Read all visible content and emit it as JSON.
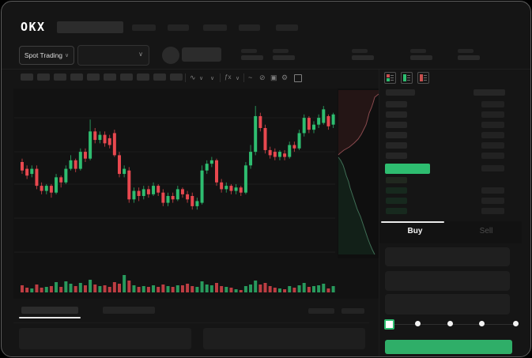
{
  "window": {
    "logo_text": "OKX"
  },
  "colors": {
    "up": "#2ebd70",
    "down": "#e8484f",
    "accent_button": "#2fae68",
    "price_highlight": "#2ebd70",
    "tab_active_underline": "#ececec"
  },
  "header": {
    "market_button": {
      "label": "Spot Trading",
      "chevron": "∨"
    },
    "pair_dropdown": {
      "chevron": "∨"
    },
    "nav_skeleton_count": 5,
    "stat_skeleton_count": 5
  },
  "chart_toolbar": {
    "chip_count": 10,
    "icon_glyphs": [
      "∿",
      "∨",
      "∨",
      "ƒx",
      "∨",
      "~",
      "⊘",
      "▣",
      "⚙"
    ]
  },
  "orderbook": {
    "view_icons": [
      "combined-book-icon",
      "bids-only-icon",
      "asks-only-icon"
    ],
    "ask_row_count": 6,
    "bid_row_count": 4
  },
  "trade_panel": {
    "tabs": [
      {
        "label": "Buy",
        "active": true
      },
      {
        "label": "Sell",
        "active": false
      }
    ],
    "input_count": 3,
    "slider": {
      "stop_count": 5,
      "selected_index": 0
    }
  },
  "chart_data": {
    "type": "candlestick",
    "title": "",
    "xlabel": "",
    "ylabel": "",
    "ylim": [
      0,
      100
    ],
    "grid": true,
    "gridline_values": [
      7,
      27,
      47,
      66,
      86
    ],
    "note": "Skeleton trading UI; no axis labels visible. Prices normalized 0-100.",
    "candles_ohlc": [
      [
        60,
        62,
        53,
        55
      ],
      [
        56,
        58,
        50,
        52
      ],
      [
        53,
        58,
        51,
        56
      ],
      [
        56,
        58,
        44,
        46
      ],
      [
        46,
        48,
        41,
        43
      ],
      [
        43,
        47,
        41,
        46
      ],
      [
        46,
        47,
        39,
        42
      ],
      [
        42,
        53,
        41,
        51
      ],
      [
        51,
        52,
        45,
        48
      ],
      [
        48,
        58,
        47,
        56
      ],
      [
        56,
        64,
        55,
        61
      ],
      [
        61,
        62,
        54,
        56
      ],
      [
        56,
        68,
        55,
        66
      ],
      [
        66,
        68,
        60,
        62
      ],
      [
        62,
        85,
        61,
        78
      ],
      [
        78,
        80,
        71,
        73
      ],
      [
        73,
        78,
        71,
        76
      ],
      [
        76,
        78,
        69,
        71
      ],
      [
        74,
        76,
        68,
        70
      ],
      [
        77,
        79,
        63,
        64
      ],
      [
        64,
        66,
        51,
        53
      ],
      [
        53,
        58,
        51,
        56
      ],
      [
        55,
        57,
        36,
        38
      ],
      [
        38,
        45,
        36,
        43
      ],
      [
        43,
        45,
        37,
        40
      ],
      [
        40,
        46,
        38,
        44
      ],
      [
        44,
        46,
        39,
        41
      ],
      [
        41,
        48,
        40,
        46
      ],
      [
        46,
        47,
        40,
        42
      ],
      [
        42,
        44,
        34,
        36
      ],
      [
        36,
        42,
        34,
        40
      ],
      [
        40,
        42,
        36,
        38
      ],
      [
        38,
        46,
        37,
        44
      ],
      [
        44,
        45,
        39,
        41
      ],
      [
        41,
        43,
        36,
        38
      ],
      [
        40,
        42,
        32,
        34
      ],
      [
        34,
        39,
        32,
        37
      ],
      [
        36,
        58,
        35,
        55
      ],
      [
        55,
        61,
        53,
        59
      ],
      [
        59,
        63,
        57,
        61
      ],
      [
        61,
        62,
        46,
        48
      ],
      [
        48,
        50,
        42,
        44
      ],
      [
        44,
        48,
        42,
        46
      ],
      [
        46,
        47,
        41,
        43
      ],
      [
        43,
        47,
        41,
        45
      ],
      [
        45,
        46,
        40,
        42
      ],
      [
        42,
        60,
        41,
        58
      ],
      [
        58,
        70,
        56,
        66
      ],
      [
        66,
        93,
        64,
        87
      ],
      [
        87,
        89,
        78,
        80
      ],
      [
        80,
        82,
        65,
        67
      ],
      [
        67,
        69,
        62,
        64
      ],
      [
        66,
        68,
        61,
        63
      ],
      [
        63,
        67,
        61,
        66
      ],
      [
        65,
        67,
        61,
        63
      ],
      [
        63,
        72,
        62,
        70
      ],
      [
        70,
        72,
        66,
        68
      ],
      [
        68,
        79,
        67,
        77
      ],
      [
        77,
        88,
        75,
        86
      ],
      [
        86,
        87,
        77,
        79
      ],
      [
        79,
        84,
        77,
        82
      ],
      [
        82,
        88,
        80,
        86
      ],
      [
        83,
        93,
        82,
        91
      ],
      [
        87,
        88,
        79,
        81
      ],
      [
        82,
        89,
        80,
        88
      ]
    ],
    "volumes": [
      9,
      6,
      5,
      10,
      6,
      7,
      8,
      13,
      7,
      14,
      11,
      8,
      12,
      9,
      16,
      10,
      8,
      9,
      7,
      13,
      11,
      22,
      15,
      9,
      7,
      8,
      7,
      9,
      7,
      10,
      8,
      7,
      9,
      9,
      11,
      8,
      7,
      14,
      10,
      9,
      12,
      8,
      7,
      6,
      4,
      3,
      8,
      10,
      15,
      10,
      12,
      8,
      6,
      5,
      4,
      8,
      6,
      9,
      12,
      7,
      8,
      9,
      11,
      5,
      8
    ],
    "depth": {
      "orientation": "vertical",
      "asks_line": [
        [
          477,
          117
        ],
        [
          472,
          121
        ],
        [
          470,
          128
        ],
        [
          468,
          134
        ],
        [
          465,
          141
        ],
        [
          463,
          149
        ],
        [
          461,
          156
        ],
        [
          458,
          162
        ],
        [
          455,
          168
        ],
        [
          451,
          174
        ],
        [
          446,
          179
        ],
        [
          440,
          184
        ],
        [
          433,
          188
        ],
        [
          428,
          192
        ],
        [
          426,
          194
        ]
      ],
      "bids_line": [
        [
          426,
          197
        ],
        [
          429,
          201
        ],
        [
          432,
          207
        ],
        [
          434,
          213
        ],
        [
          436,
          220
        ],
        [
          439,
          228
        ],
        [
          441,
          236
        ],
        [
          444,
          245
        ],
        [
          447,
          254
        ],
        [
          450,
          263
        ],
        [
          454,
          272
        ],
        [
          457,
          281
        ],
        [
          460,
          290
        ],
        [
          463,
          299
        ],
        [
          466,
          307
        ],
        [
          469,
          314
        ],
        [
          472,
          320
        ]
      ]
    }
  }
}
